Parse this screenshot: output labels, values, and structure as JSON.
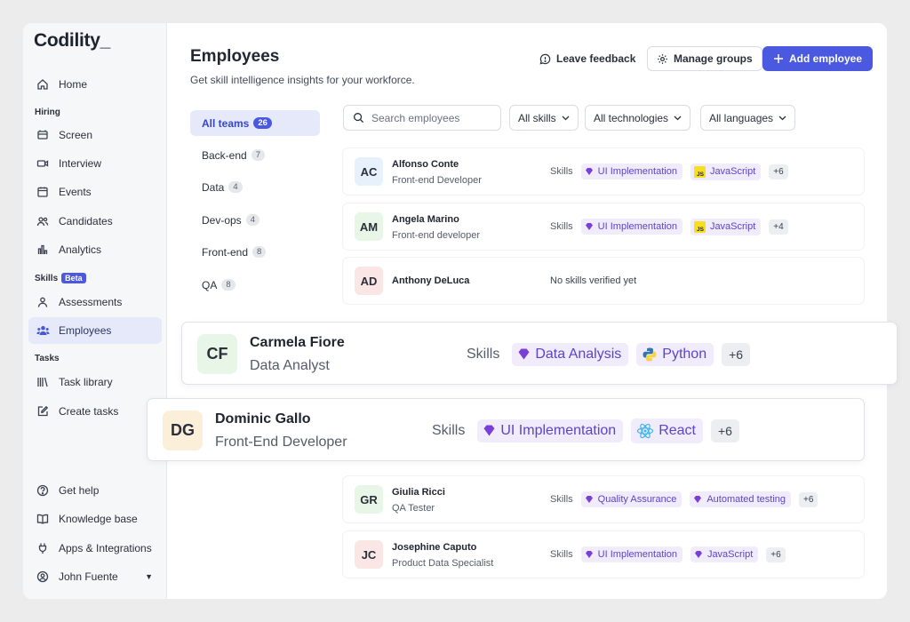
{
  "app": {
    "logo": "Codility_",
    "colors": {
      "accent": "#4a59e0",
      "chip_bg": "#f1ecfb",
      "chip_text": "#5a45c8"
    }
  },
  "sidebar": {
    "home": "Home",
    "hiring_section": "Hiring",
    "screen": "Screen",
    "interview": "Interview",
    "events": "Events",
    "candidates": "Candidates",
    "analytics": "Analytics",
    "skills_section": "Skills",
    "beta": "Beta",
    "assessments": "Assessments",
    "employees": "Employees",
    "tasks_section": "Tasks",
    "task_library": "Task library",
    "create_tasks": "Create tasks",
    "get_help": "Get help",
    "knowledge_base": "Knowledge base",
    "apps": "Apps & Integrations",
    "user": "John Fuente"
  },
  "header": {
    "title": "Employees",
    "subtitle": "Get skill intelligence insights for your workforce.",
    "feedback": "Leave feedback",
    "manage_groups": "Manage groups",
    "add_employee": "Add employee"
  },
  "teams": [
    {
      "label": "All teams",
      "count": "26"
    },
    {
      "label": "Back-end",
      "count": "7"
    },
    {
      "label": "Data",
      "count": "4"
    },
    {
      "label": "Dev-ops",
      "count": "4"
    },
    {
      "label": "Front-end",
      "count": "8"
    },
    {
      "label": "QA",
      "count": "8"
    }
  ],
  "filters": {
    "search_placeholder": "Search employees",
    "skills": "All skills",
    "technologies": "All technologies",
    "languages": "All languages"
  },
  "skills_label": "Skills",
  "employees": [
    {
      "initials": "AC",
      "name": "Alfonso Conte",
      "role": "Front-end Developer",
      "chip1": "UI Implementation",
      "chip2": "JavaScript",
      "more": "+6"
    },
    {
      "initials": "AM",
      "name": "Angela Marino",
      "role": "Front-end developer",
      "chip1": "UI Implementation",
      "chip2": "JavaScript",
      "more": "+4"
    },
    {
      "initials": "AD",
      "name": "Anthony DeLuca",
      "no_skills": "No skills verified yet"
    },
    {
      "initials": "GR",
      "name": "Giulia Ricci",
      "role": "QA Tester",
      "chip1": "Quality Assurance",
      "chip2": "Automated testing",
      "more": "+6"
    },
    {
      "initials": "JC",
      "name": "Josephine Caputo",
      "role": "Product Data Specialist",
      "chip1": "UI Implementation",
      "chip2": "JavaScript",
      "more": "+6"
    }
  ],
  "highlighted": [
    {
      "initials": "CF",
      "name": "Carmela Fiore",
      "role": "Data Analyst",
      "chip1": "Data Analysis",
      "chip2": "Python",
      "more": "+6"
    },
    {
      "initials": "DG",
      "name": "Dominic Gallo",
      "role": "Front-End Developer",
      "chip1": "UI Implementation",
      "chip2": "React",
      "more": "+6"
    }
  ]
}
